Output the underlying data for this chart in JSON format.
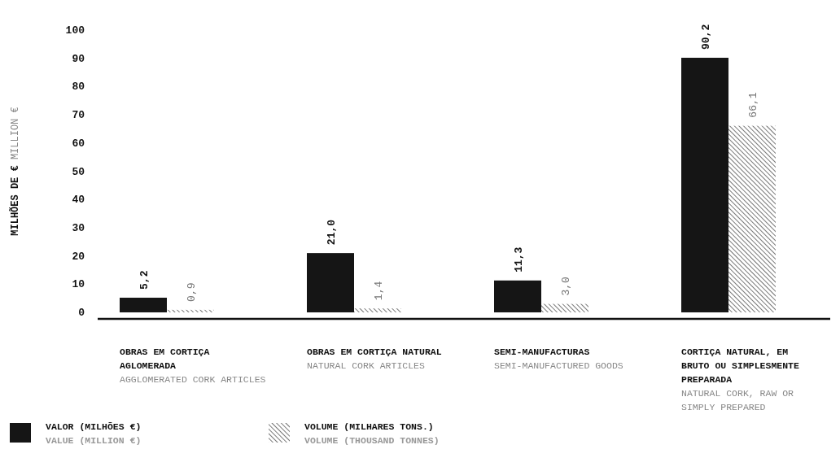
{
  "chart_data": {
    "type": "bar",
    "ylabel": "MILHÕES DE €\nMILLION €",
    "categories": [
      "OBRAS EM CORTIÇA AGLOMERADA\nAGGLOMERATED CORK ARTICLES",
      "OBRAS EM CORTIÇA NATURAL\nNATURAL CORK ARTICLES",
      "SEMI-MANUFACTURAS\nSEMI-MANUFACTURED GOODS",
      "CORTIÇA NATURAL, EM BRUTO OU SIMPLESMENTE PREPARADA\nNATURAL CORK, RAW OR SIMPLY PREPARED"
    ],
    "series": [
      {
        "name": "VALOR (MILHÕES €)\nVALUE (MILLION €)",
        "color": "#151515",
        "values": [
          5.2,
          21.0,
          11.3,
          90.2
        ],
        "value_labels": [
          "5,2",
          "21,0",
          "11,3",
          "90,2"
        ]
      },
      {
        "name": "VOLUME (MILHARES TONS.)\nVOLUME (THOUSAND TONNES)",
        "color": "#555555",
        "values": [
          0.9,
          1.4,
          3.0,
          66.1
        ],
        "value_labels": [
          "0,9",
          "1,4",
          "3,0",
          "66,1"
        ]
      }
    ],
    "ylim": [
      0,
      100
    ],
    "yticks": [
      0,
      10,
      20,
      30,
      40,
      50,
      60,
      70,
      80,
      90,
      100
    ],
    "grid": false,
    "legend": "bottom left"
  }
}
